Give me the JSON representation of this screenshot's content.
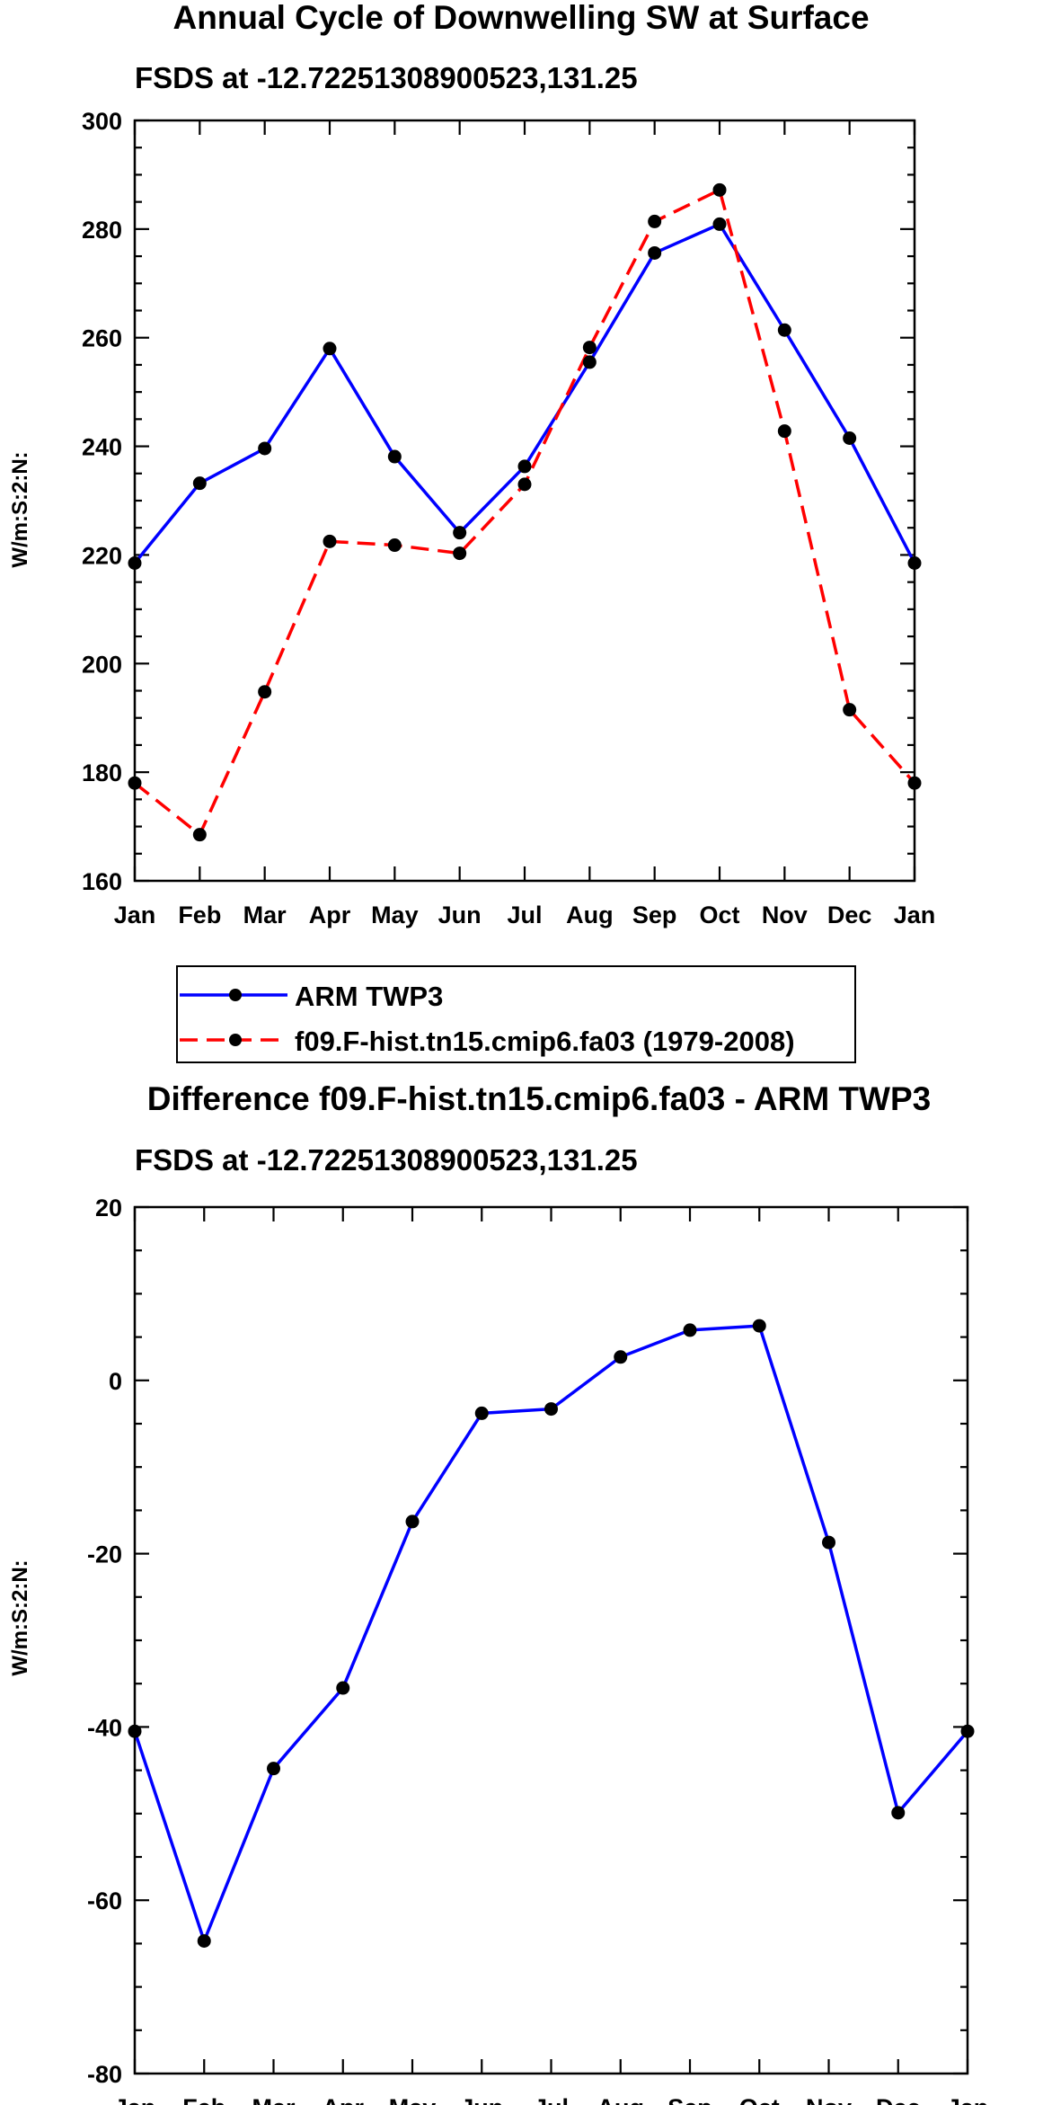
{
  "chart_data": [
    {
      "type": "line",
      "title": "Annual Cycle of Downwelling SW at Surface",
      "subtitle": "FSDS at -12.72251308900523,131.25",
      "xlabel": "",
      "ylabel": "W/m:S:2:N:",
      "categories": [
        "Jan",
        "Feb",
        "Mar",
        "Apr",
        "May",
        "Jun",
        "Jul",
        "Aug",
        "Sep",
        "Oct",
        "Nov",
        "Dec",
        "Jan"
      ],
      "ylim": [
        160,
        300
      ],
      "yticks": [
        160,
        180,
        200,
        220,
        240,
        260,
        280,
        300
      ],
      "ytick_labels": [
        "160",
        "180",
        "200",
        "220",
        "240",
        "260",
        "280",
        "300"
      ],
      "series": [
        {
          "name": "ARM TWP3",
          "color": "#0000ff",
          "dash": "solid",
          "values": [
            218.5,
            233.2,
            239.6,
            258.0,
            238.1,
            224.1,
            236.3,
            255.5,
            275.6,
            280.9,
            261.4,
            241.5,
            218.5
          ]
        },
        {
          "name": "f09.F-hist.tn15.cmip6.fa03 (1979-2008)",
          "color": "#ff0000",
          "dash": "dashed",
          "values": [
            178.0,
            168.5,
            194.8,
            222.5,
            221.8,
            220.3,
            233.0,
            258.2,
            281.4,
            287.2,
            242.8,
            191.5,
            178.0
          ]
        }
      ],
      "legend": {
        "position": "bottom",
        "entries": [
          "ARM TWP3",
          "f09.F-hist.tn15.cmip6.fa03 (1979-2008)"
        ]
      }
    },
    {
      "type": "line",
      "title": "Difference f09.F-hist.tn15.cmip6.fa03 - ARM TWP3",
      "subtitle": "FSDS at -12.72251308900523,131.25",
      "xlabel": "",
      "ylabel": "W/m:S:2:N:",
      "categories": [
        "Jan",
        "Feb",
        "Mar",
        "Apr",
        "May",
        "Jun",
        "Jul",
        "Aug",
        "Sep",
        "Oct",
        "Nov",
        "Dec",
        "Jan"
      ],
      "ylim": [
        -80,
        20
      ],
      "yticks": [
        -80,
        -60,
        -40,
        -20,
        0,
        20
      ],
      "ytick_labels": [
        "-80",
        "-60",
        "-40",
        "-20",
        "0",
        "20"
      ],
      "series": [
        {
          "name": "Difference",
          "color": "#0000ff",
          "dash": "solid",
          "values": [
            -40.5,
            -64.7,
            -44.8,
            -35.5,
            -16.3,
            -3.8,
            -3.3,
            2.7,
            5.8,
            6.3,
            -18.7,
            -49.9,
            -40.5
          ]
        }
      ]
    }
  ]
}
